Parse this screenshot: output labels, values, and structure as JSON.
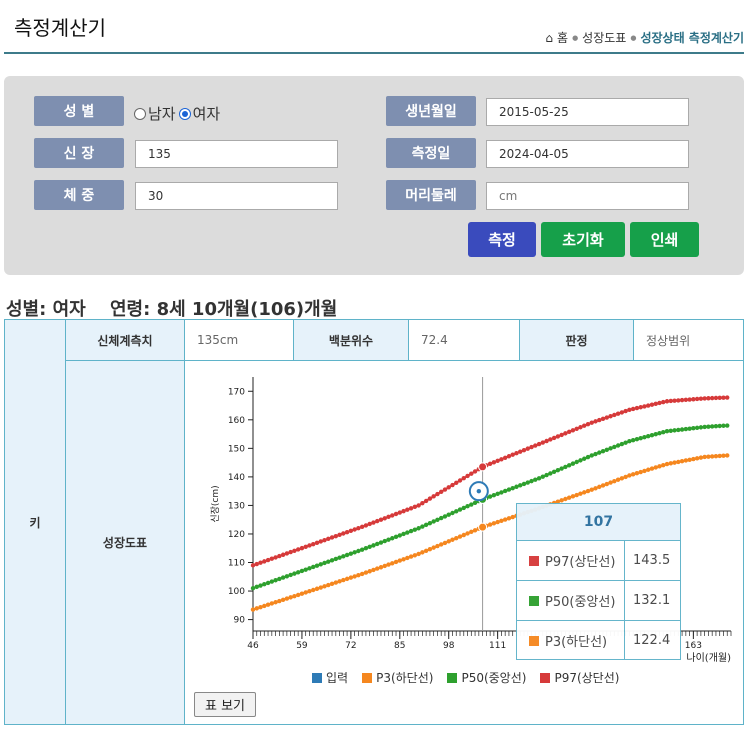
{
  "header": {
    "title": "측정계산기",
    "breadcrumb": {
      "home": "홈",
      "section": "성장도표",
      "current": "성장상태 측정계산기"
    }
  },
  "form": {
    "gender_label": "성 별",
    "gender_options": [
      "남자",
      "여자"
    ],
    "gender_selected": "여자",
    "height_label": "신 장",
    "height_value": "135",
    "weight_label": "체 중",
    "weight_value": "30",
    "birth_label": "생년월일",
    "birth_value": "2015-05-25",
    "measure_date_label": "측정일",
    "measure_date_value": "2024-04-05",
    "head_label": "머리둘레",
    "head_placeholder": "cm",
    "buttons": {
      "measure": "측정",
      "reset": "초기화",
      "print": "인쇄"
    },
    "button_colors": {
      "measure": "#3a4bbd",
      "reset": "#16a04a",
      "print": "#16a04a"
    }
  },
  "result": {
    "summary_gender": "성별: 여자",
    "summary_age": "연령: 8세 10개월(106)개월",
    "row_label": "키",
    "measure_header": "신체계측치",
    "measure_value": "135cm",
    "percentile_header": "백분위수",
    "percentile_value": "72.4",
    "judge_header": "판정",
    "judge_value": "정상범위",
    "chart_header": "성장도표",
    "table_button": "표 보기"
  },
  "tooltip": {
    "title": "107",
    "rows": [
      {
        "name": "P97(상단선)",
        "value": "143.5",
        "color": "#d63a3a"
      },
      {
        "name": "P50(중앙선)",
        "value": "132.1",
        "color": "#2ea02e"
      },
      {
        "name": "P3(하단선)",
        "value": "122.4",
        "color": "#f5871f"
      }
    ]
  },
  "legend": [
    {
      "label": "입력",
      "color": "#2e7bb6"
    },
    {
      "label": "P3(하단선)",
      "color": "#f5871f"
    },
    {
      "label": "P50(중앙선)",
      "color": "#2ea02e"
    },
    {
      "label": "P97(상단선)",
      "color": "#d63a3a"
    }
  ],
  "chart_data": {
    "type": "line",
    "ylabel": "신장(cm)",
    "xlabel": "나이(개월)",
    "xlim": [
      46,
      173
    ],
    "ylim": [
      86,
      175
    ],
    "xticks": [
      46,
      59,
      72,
      85,
      98,
      111,
      163
    ],
    "yticks": [
      90,
      100,
      110,
      120,
      130,
      140,
      150,
      160,
      170
    ],
    "grid": false,
    "legend_position": "bottom",
    "series": [
      {
        "name": "P97(상단선)",
        "color": "#d63a3a",
        "points": [
          [
            46,
            109
          ],
          [
            60,
            115.5
          ],
          [
            75,
            122.5
          ],
          [
            90,
            130
          ],
          [
            107,
            143.5
          ],
          [
            122,
            151.5
          ],
          [
            136,
            159
          ],
          [
            146,
            163.5
          ],
          [
            156,
            166.5
          ],
          [
            166,
            167.5
          ],
          [
            172,
            167.8
          ]
        ]
      },
      {
        "name": "P50(중앙선)",
        "color": "#2ea02e",
        "points": [
          [
            46,
            101
          ],
          [
            60,
            107.5
          ],
          [
            75,
            114.5
          ],
          [
            90,
            122
          ],
          [
            107,
            132.1
          ],
          [
            122,
            139.5
          ],
          [
            136,
            147.5
          ],
          [
            146,
            152.5
          ],
          [
            156,
            156
          ],
          [
            166,
            157.5
          ],
          [
            172,
            158
          ]
        ]
      },
      {
        "name": "P3(하단선)",
        "color": "#f5871f",
        "points": [
          [
            46,
            93.5
          ],
          [
            60,
            99.5
          ],
          [
            75,
            106
          ],
          [
            90,
            113
          ],
          [
            107,
            122.4
          ],
          [
            122,
            129
          ],
          [
            136,
            135.5
          ],
          [
            146,
            140.5
          ],
          [
            156,
            144.5
          ],
          [
            166,
            147
          ],
          [
            172,
            147.5
          ]
        ]
      }
    ],
    "input_point": {
      "name": "입력",
      "x": 106,
      "y": 135,
      "color": "#2e7bb6"
    },
    "highlight_x": 107
  }
}
